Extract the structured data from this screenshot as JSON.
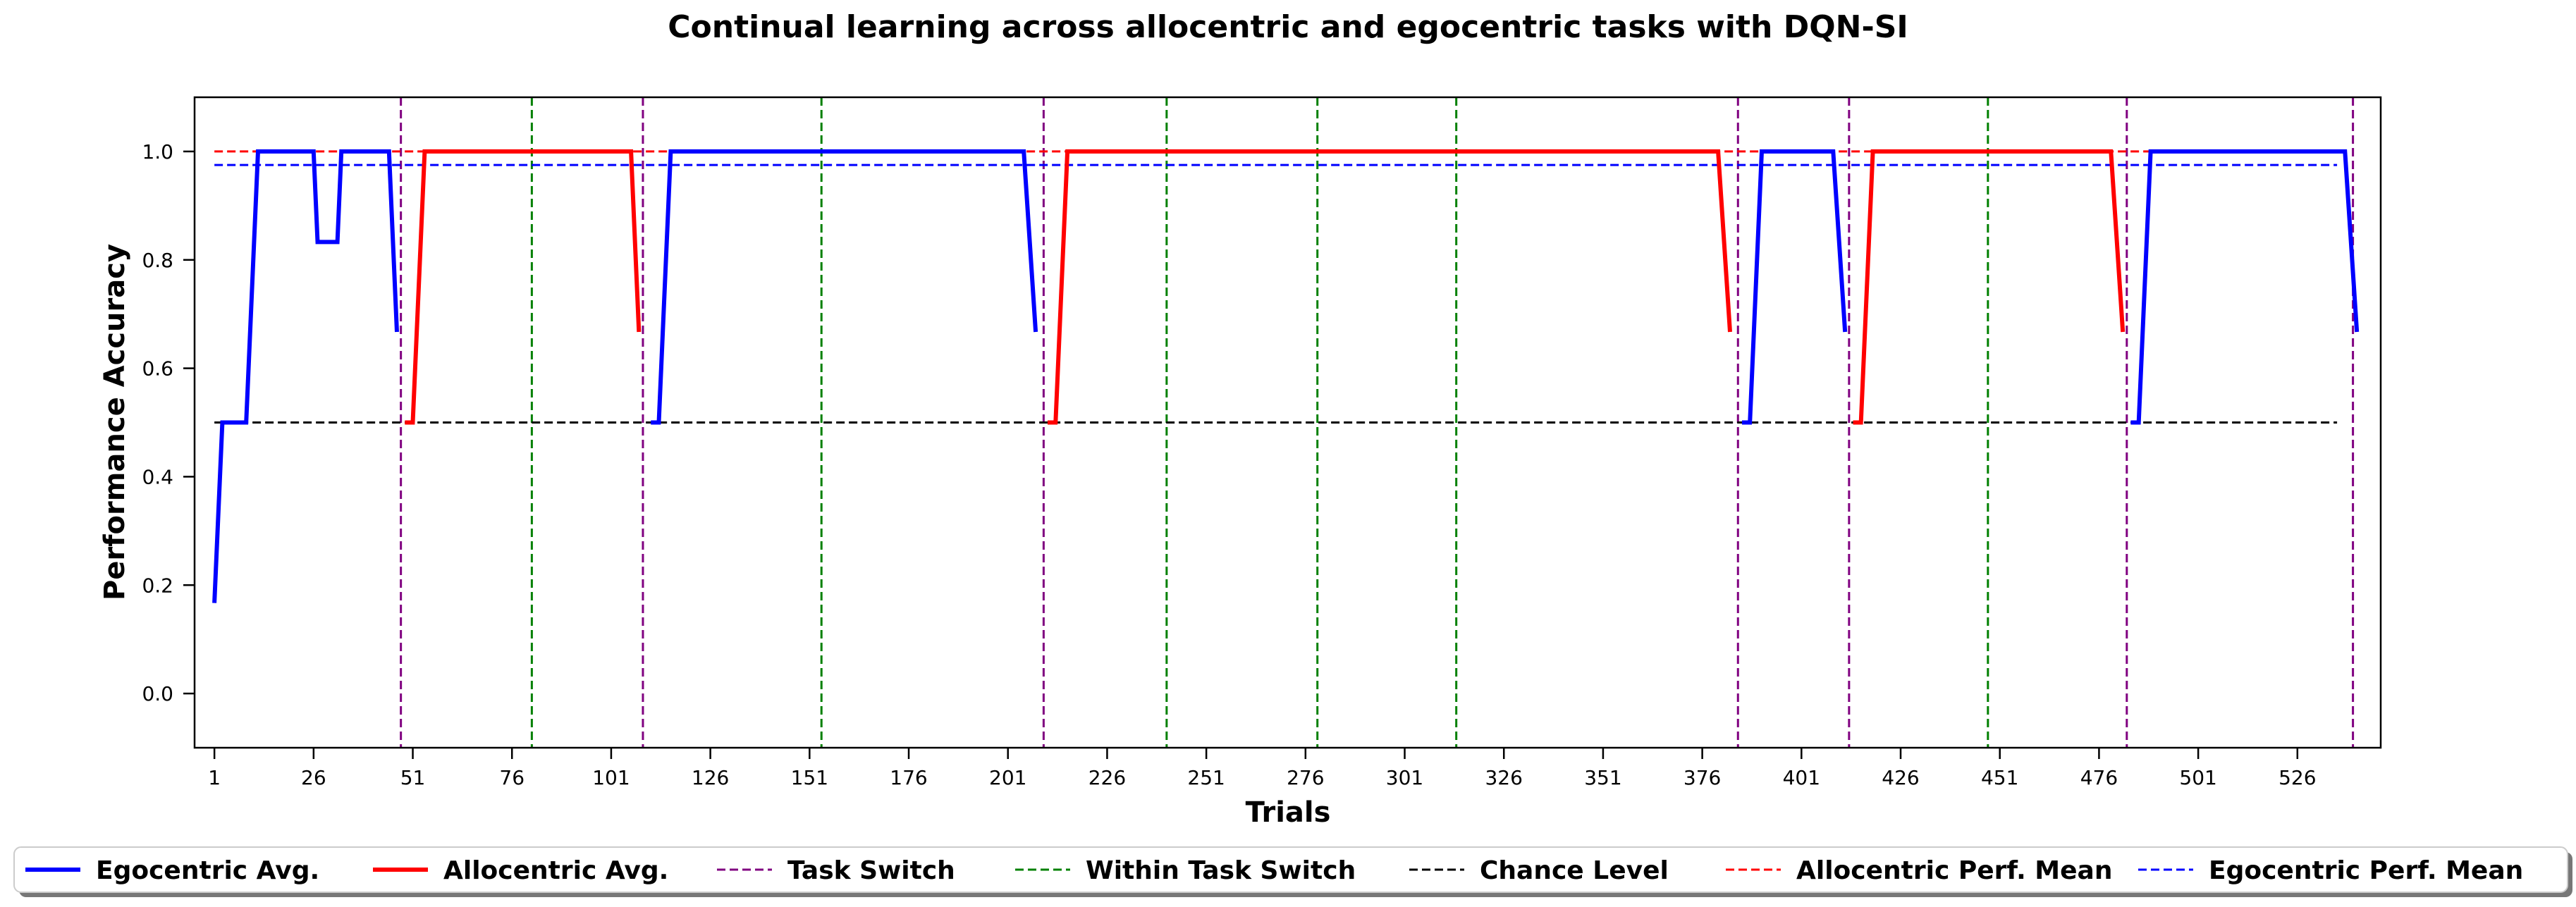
{
  "chart_data": {
    "type": "line",
    "title": "Continual learning across allocentric and egocentric tasks with DQN-SI",
    "xlabel": "Trials",
    "ylabel": "Performance Accuracy",
    "xlim": [
      -4,
      547
    ],
    "ylim": [
      -0.1,
      1.1
    ],
    "x_ticks": [
      1,
      26,
      51,
      76,
      101,
      126,
      151,
      176,
      201,
      226,
      251,
      276,
      301,
      326,
      351,
      376,
      401,
      426,
      451,
      476,
      501,
      526
    ],
    "x_tick_labels": [
      "1",
      "26",
      "51",
      "76",
      "101",
      "126",
      "151",
      "176",
      "201",
      "226",
      "251",
      "276",
      "301",
      "326",
      "351",
      "376",
      "401",
      "426",
      "451",
      "476",
      "501",
      "526"
    ],
    "y_ticks": [
      0.0,
      0.2,
      0.4,
      0.6,
      0.8,
      1.0
    ],
    "y_tick_labels": [
      "0.0",
      "0.2",
      "0.4",
      "0.6",
      "0.8",
      "1.0"
    ],
    "grid": false,
    "legend_placement": "bottom",
    "series": [
      {
        "name": "Egocentric Avg.",
        "color": "#0000ff",
        "style": "solid",
        "segments": [
          [
            [
              1,
              0.167
            ],
            [
              3,
              0.5
            ],
            [
              9,
              0.5
            ],
            [
              12,
              1.0
            ],
            [
              26,
              1.0
            ],
            [
              27,
              0.833
            ],
            [
              32,
              0.833
            ],
            [
              33,
              1.0
            ],
            [
              45,
              1.0
            ],
            [
              47,
              0.667
            ]
          ],
          [
            [
              111,
              0.5
            ],
            [
              113,
              0.5
            ],
            [
              116,
              1.0
            ],
            [
              205,
              1.0
            ],
            [
              208,
              0.667
            ]
          ],
          [
            [
              386,
              0.5
            ],
            [
              388,
              0.5
            ],
            [
              391,
              1.0
            ],
            [
              409,
              1.0
            ],
            [
              412,
              0.667
            ]
          ],
          [
            [
              484,
              0.5
            ],
            [
              486,
              0.5
            ],
            [
              489,
              1.0
            ],
            [
              538,
              1.0
            ],
            [
              541,
              0.667
            ]
          ]
        ]
      },
      {
        "name": "Allocentric Avg.",
        "color": "#ff0000",
        "style": "solid",
        "segments": [
          [
            [
              49,
              0.5
            ],
            [
              51,
              0.5
            ],
            [
              54,
              1.0
            ],
            [
              106,
              1.0
            ],
            [
              108,
              0.667
            ]
          ],
          [
            [
              211,
              0.5
            ],
            [
              213,
              0.5
            ],
            [
              216,
              1.0
            ],
            [
              380,
              1.0
            ],
            [
              383,
              0.667
            ]
          ],
          [
            [
              414,
              0.5
            ],
            [
              416,
              0.5
            ],
            [
              419,
              1.0
            ],
            [
              479,
              1.0
            ],
            [
              482,
              0.667
            ]
          ]
        ]
      }
    ],
    "reference_lines": [
      {
        "name": "Chance Level",
        "color": "#000000",
        "style": "dashed",
        "y": 0.5,
        "x_range": [
          1,
          536
        ]
      },
      {
        "name": "Allocentric Perf. Mean",
        "color": "#ff0000",
        "style": "dashed",
        "y": 1.0,
        "x_range": [
          1,
          536
        ]
      },
      {
        "name": "Egocentric Perf. Mean",
        "color": "#0000ff",
        "style": "dashed",
        "y": 0.975,
        "x_range": [
          1,
          536
        ]
      }
    ],
    "task_switches": {
      "name": "Task Switch",
      "color": "#800080",
      "style": "dashed",
      "x": [
        48,
        109,
        210,
        385,
        413,
        483,
        540
      ]
    },
    "within_task_switches": {
      "name": "Within Task Switch",
      "color": "#008000",
      "style": "dashed",
      "x": [
        81,
        154,
        241,
        279,
        314,
        448
      ]
    },
    "legend": [
      {
        "label": "Egocentric Avg.",
        "color": "#0000ff",
        "style": "solid"
      },
      {
        "label": "Allocentric Avg.",
        "color": "#ff0000",
        "style": "solid"
      },
      {
        "label": "Task Switch",
        "color": "#800080",
        "style": "dashed"
      },
      {
        "label": "Within Task Switch",
        "color": "#008000",
        "style": "dashed"
      },
      {
        "label": "Chance Level",
        "color": "#000000",
        "style": "dashed"
      },
      {
        "label": "Allocentric Perf. Mean",
        "color": "#ff0000",
        "style": "dashed"
      },
      {
        "label": "Egocentric Perf. Mean",
        "color": "#0000ff",
        "style": "dashed"
      }
    ]
  }
}
